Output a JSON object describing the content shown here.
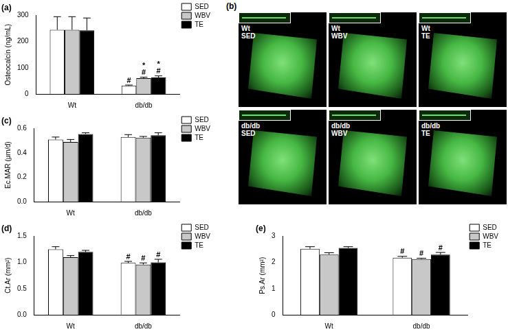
{
  "chart_data": [
    {
      "type": "bar",
      "title": "(a)",
      "y_label": "Osteocalcin (ng/mL)",
      "categories": [
        "Wt",
        "db/db"
      ],
      "series": [
        {
          "name": "SED",
          "color": "#ffffff",
          "values": [
            245,
            32
          ],
          "errors": [
            50,
            2
          ],
          "annotations": [
            null,
            [
              "#"
            ]
          ]
        },
        {
          "name": "WBV",
          "color": "#c8c8c8",
          "values": [
            245,
            60
          ],
          "errors": [
            50,
            4
          ],
          "annotations": [
            null,
            [
              "*",
              "#"
            ]
          ]
        },
        {
          "name": "TE",
          "color": "#000000",
          "values": [
            243,
            63
          ],
          "errors": [
            47,
            6
          ],
          "annotations": [
            null,
            [
              "*",
              "#"
            ]
          ]
        }
      ],
      "ylim": [
        0,
        300
      ],
      "yticks": [
        0,
        100,
        200,
        300
      ],
      "grid": false,
      "legend": "right"
    },
    {
      "type": "bar",
      "title": "(c)",
      "y_label": "Ec.MAR (μm/d)",
      "categories": [
        "Wt",
        "db/db"
      ],
      "series": [
        {
          "name": "SED",
          "color": "#ffffff",
          "values": [
            0.51,
            0.53
          ],
          "errors": [
            0.02,
            0.02
          ]
        },
        {
          "name": "WBV",
          "color": "#c8c8c8",
          "values": [
            0.49,
            0.525
          ],
          "errors": [
            0.02,
            0.01
          ]
        },
        {
          "name": "TE",
          "color": "#000000",
          "values": [
            0.555,
            0.545
          ],
          "errors": [
            0.01,
            0.02
          ]
        }
      ],
      "ylim": [
        0,
        0.6
      ],
      "yticks": [
        {
          "value": 0,
          "label": "0.0"
        },
        {
          "value": 0.2,
          "label": "0.2"
        },
        {
          "value": 0.4,
          "label": "0.4"
        },
        {
          "value": 0.6,
          "label": "0.6"
        }
      ],
      "grid": false,
      "legend": "right"
    },
    {
      "type": "bar",
      "title": "(d)",
      "y_label": "Ct.Ar (mm²)",
      "categories": [
        "Wt",
        "db/db"
      ],
      "series": [
        {
          "name": "SED",
          "color": "#ffffff",
          "values": [
            1.25,
            0.99
          ],
          "errors": [
            0.05,
            0.03
          ],
          "annotations": [
            null,
            [
              "#"
            ]
          ]
        },
        {
          "name": "WBV",
          "color": "#c8c8c8",
          "values": [
            1.1,
            0.96
          ],
          "errors": [
            0.03,
            0.03
          ],
          "annotations": [
            null,
            [
              "#"
            ]
          ]
        },
        {
          "name": "TE",
          "color": "#000000",
          "values": [
            1.2,
            1.0
          ],
          "errors": [
            0.03,
            0.06
          ],
          "annotations": [
            null,
            [
              "#"
            ]
          ]
        }
      ],
      "ylim": [
        0,
        1.5
      ],
      "yticks": [
        {
          "value": 0,
          "label": "0.0"
        },
        {
          "value": 0.5,
          "label": "0.5"
        },
        {
          "value": 1,
          "label": "1.0"
        },
        {
          "value": 1.5,
          "label": "1.5"
        }
      ],
      "grid": false,
      "legend": "right"
    },
    {
      "type": "bar",
      "title": "(e)",
      "y_label": "Ps.Ar (mm²)",
      "categories": [
        "Wt",
        "db/db"
      ],
      "series": [
        {
          "name": "SED",
          "color": "#ffffff",
          "values": [
            2.52,
            2.18
          ],
          "errors": [
            0.08,
            0.05
          ],
          "annotations": [
            null,
            [
              "#"
            ]
          ]
        },
        {
          "name": "WBV",
          "color": "#c8c8c8",
          "values": [
            2.3,
            2.13
          ],
          "errors": [
            0.07,
            0.03
          ],
          "annotations": [
            null,
            [
              "#"
            ]
          ]
        },
        {
          "name": "TE",
          "color": "#000000",
          "values": [
            2.55,
            2.3
          ],
          "errors": [
            0.05,
            0.08
          ],
          "annotations": [
            null,
            [
              "#"
            ]
          ]
        }
      ],
      "ylim": [
        0,
        3
      ],
      "yticks": [
        0,
        1,
        2,
        3
      ],
      "grid": false,
      "legend": "right"
    }
  ],
  "image_panel": {
    "title": "(b)",
    "tiles": [
      {
        "label": [
          "Wt",
          "SED"
        ]
      },
      {
        "label": [
          "Wt",
          "WBV"
        ]
      },
      {
        "label": [
          "Wt",
          "TE"
        ]
      },
      {
        "label": [
          "db/db",
          "SED"
        ]
      },
      {
        "label": [
          "db/db",
          "WBV"
        ]
      },
      {
        "label": [
          "db/db",
          "TE"
        ]
      }
    ]
  }
}
